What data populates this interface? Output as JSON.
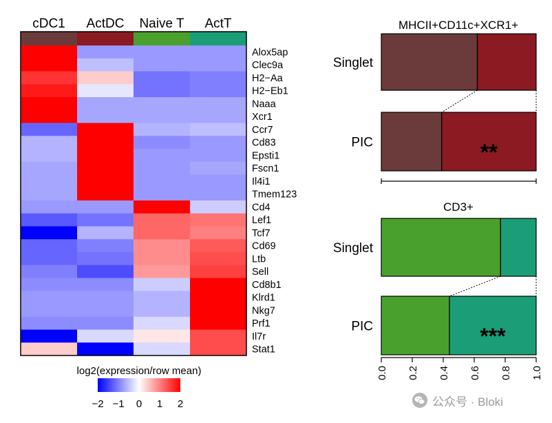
{
  "chart_data": [
    {
      "type": "heatmap",
      "columns": [
        "cDC1",
        "ActDC",
        "Naive T",
        "ActT"
      ],
      "column_colors": [
        "#6b3a3a",
        "#8b1a22",
        "#4aa02c",
        "#1b9e77"
      ],
      "rows": [
        "Alox5ap",
        "Clec9a",
        "H2−Aa",
        "H2−Eb1",
        "Naaa",
        "Xcr1",
        "Ccr7",
        "Cd83",
        "Epsti1",
        "Fscn1",
        "Il4i1",
        "Tmem123",
        "Cd4",
        "Lef1",
        "Tcf7",
        "Cd69",
        "Ltb",
        "Sell",
        "Cd8b1",
        "Klrd1",
        "Nkg7",
        "Prf1",
        "Il7r",
        "Stat1"
      ],
      "values": [
        [
          2.0,
          -0.8,
          -0.8,
          -0.8
        ],
        [
          2.0,
          -0.5,
          -0.8,
          -0.8
        ],
        [
          1.6,
          0.4,
          -1.1,
          -1.0
        ],
        [
          1.8,
          -0.2,
          -1.1,
          -1.0
        ],
        [
          2.0,
          -0.7,
          -0.7,
          -0.7
        ],
        [
          2.0,
          -0.7,
          -0.7,
          -0.7
        ],
        [
          -1.2,
          2.0,
          -0.6,
          -0.5
        ],
        [
          -0.6,
          2.0,
          -0.9,
          -0.8
        ],
        [
          -0.6,
          2.0,
          -0.8,
          -0.8
        ],
        [
          -0.7,
          2.0,
          -0.8,
          -0.7
        ],
        [
          -0.7,
          2.0,
          -0.8,
          -0.8
        ],
        [
          -0.7,
          2.0,
          -0.8,
          -0.8
        ],
        [
          -0.8,
          -0.8,
          2.0,
          -0.4
        ],
        [
          -1.3,
          -1.1,
          1.2,
          1.1
        ],
        [
          -2.0,
          -0.6,
          1.2,
          1.0
        ],
        [
          -1.2,
          -1.0,
          0.9,
          1.3
        ],
        [
          -1.2,
          -1.1,
          0.9,
          1.4
        ],
        [
          -1.0,
          -1.4,
          0.8,
          1.5
        ],
        [
          -0.9,
          -0.9,
          -0.4,
          2.0
        ],
        [
          -0.8,
          -0.8,
          -0.6,
          2.0
        ],
        [
          -0.8,
          -0.8,
          -0.6,
          2.0
        ],
        [
          -0.9,
          -0.9,
          -0.3,
          2.0
        ],
        [
          -2.0,
          -0.3,
          0.2,
          1.4
        ],
        [
          0.4,
          -2.0,
          -0.3,
          1.4
        ]
      ],
      "colorbar": {
        "label": "log2(expression/row mean)",
        "range": [
          -2,
          2
        ],
        "ticks": [
          "−2",
          "−1",
          "0",
          "1",
          "2"
        ],
        "low_color": "#0000ff",
        "mid_color": "#ffffff",
        "high_color": "#ff0000"
      }
    },
    {
      "type": "bar",
      "orientation": "horizontal-stacked",
      "x_range": [
        0,
        1
      ],
      "x_ticks": [
        "0.0",
        "0.2",
        "0.4",
        "0.6",
        "0.8",
        "1.0"
      ],
      "panels": [
        {
          "title": "MHCII+CD11c+XCR1+",
          "categories": [
            "Singlet",
            "PIC"
          ],
          "series": [
            {
              "name": "cDC1",
              "color": "#6b3a3a",
              "values": [
                0.62,
                0.39
              ]
            },
            {
              "name": "ActDC",
              "color": "#8b1a22",
              "values": [
                0.38,
                0.61
              ]
            }
          ],
          "significance": [
            "",
            "**"
          ]
        },
        {
          "title": "CD3+",
          "categories": [
            "Singlet",
            "PIC"
          ],
          "series": [
            {
              "name": "Naive T",
              "color": "#4aa02c",
              "values": [
                0.77,
                0.44
              ]
            },
            {
              "name": "ActT",
              "color": "#1b9e77",
              "values": [
                0.23,
                0.56
              ]
            }
          ],
          "significance": [
            "",
            "***"
          ]
        }
      ]
    }
  ],
  "watermark": {
    "text": "公众号 · Bloki"
  }
}
